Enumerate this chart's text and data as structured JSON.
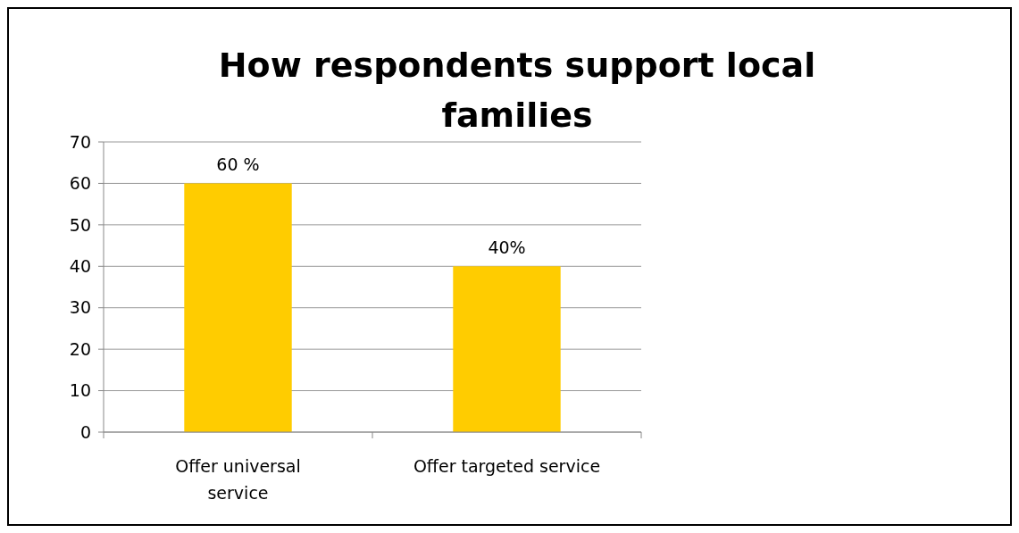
{
  "chart_data": {
    "type": "bar",
    "title": "How respondents support local families",
    "categories": [
      "Offer universal service",
      "Offer targeted service"
    ],
    "values": [
      60,
      40
    ],
    "color": "#ffcc00",
    "value_labels": [
      "60 %",
      "40%"
    ],
    "ylim": [
      0,
      70
    ],
    "yticks": [
      0,
      10,
      20,
      30,
      40,
      50,
      60,
      70
    ],
    "grid": "y"
  }
}
